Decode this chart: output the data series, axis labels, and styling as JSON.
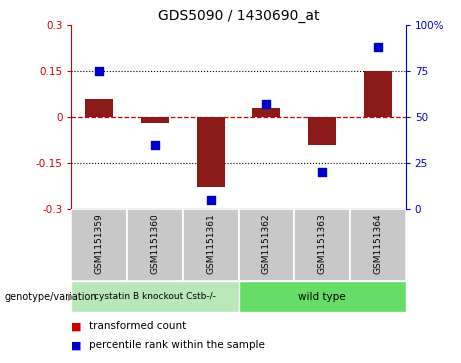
{
  "title": "GDS5090 / 1430690_at",
  "samples": [
    "GSM1151359",
    "GSM1151360",
    "GSM1151361",
    "GSM1151362",
    "GSM1151363",
    "GSM1151364"
  ],
  "transformed_counts": [
    0.06,
    -0.02,
    -0.23,
    0.03,
    -0.09,
    0.15
  ],
  "percentile_ranks": [
    75,
    35,
    5,
    57,
    20,
    88
  ],
  "ylim_left": [
    -0.3,
    0.3
  ],
  "ylim_right": [
    0,
    100
  ],
  "left_yticks": [
    -0.3,
    -0.15,
    0,
    0.15,
    0.3
  ],
  "right_yticks": [
    0,
    25,
    50,
    75,
    100
  ],
  "left_ytick_labels": [
    "-0.3",
    "-0.15",
    "0",
    "0.15",
    "0.3"
  ],
  "right_ytick_labels": [
    "0",
    "25",
    "50",
    "75",
    "100%"
  ],
  "group_labels": [
    "cystatin B knockout Cstb-/-",
    "wild type"
  ],
  "group_colors": [
    "#b8e8b8",
    "#66dd66"
  ],
  "bar_color": "#8B1A1A",
  "dot_color": "#0000CC",
  "zero_line_color": "#cc0000",
  "hline_color": "#000000",
  "bg_color": "#ffffff",
  "sample_box_color": "#c8c8c8",
  "legend_items": [
    {
      "label": "transformed count",
      "color": "#cc0000"
    },
    {
      "label": "percentile rank within the sample",
      "color": "#0000CC"
    }
  ],
  "genotype_label": "genotype/variation",
  "bar_width": 0.5,
  "dot_size": 35
}
